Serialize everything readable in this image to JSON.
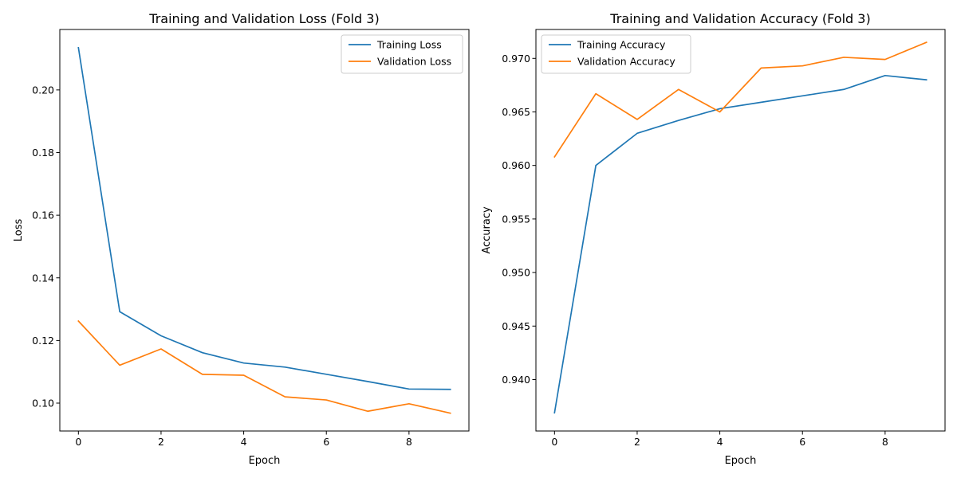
{
  "chart_data": [
    {
      "type": "line",
      "title": "Training and Validation Loss (Fold 3)",
      "xlabel": "Epoch",
      "ylabel": "Loss",
      "xlim": [
        -0.45,
        9.45
      ],
      "ylim": [
        0.0911,
        0.2193
      ],
      "xticks": [
        0,
        2,
        4,
        6,
        8
      ],
      "yticks": [
        0.1,
        0.12,
        0.14,
        0.16,
        0.18,
        0.2
      ],
      "xtick_labels": [
        "0",
        "2",
        "4",
        "6",
        "8"
      ],
      "ytick_labels": [
        "0.10",
        "0.12",
        "0.14",
        "0.16",
        "0.18",
        "0.20"
      ],
      "grid": false,
      "legend_position": "upper right",
      "x": [
        0,
        1,
        2,
        3,
        4,
        5,
        6,
        7,
        8,
        9
      ],
      "series": [
        {
          "name": "Training Loss",
          "color": "#1f77b4",
          "values": [
            0.2135,
            0.1292,
            0.1215,
            0.1161,
            0.1128,
            0.1115,
            0.1092,
            0.1069,
            0.1045,
            0.1044
          ]
        },
        {
          "name": "Validation Loss",
          "color": "#ff7f0e",
          "values": [
            0.1262,
            0.1121,
            0.1173,
            0.1092,
            0.1089,
            0.102,
            0.101,
            0.0974,
            0.0998,
            0.0968
          ]
        }
      ]
    },
    {
      "type": "line",
      "title": "Training and Validation Accuracy (Fold 3)",
      "xlabel": "Epoch",
      "ylabel": "Accuracy",
      "xlim": [
        -0.45,
        9.45
      ],
      "ylim": [
        0.9352,
        0.9727
      ],
      "xticks": [
        0,
        2,
        4,
        6,
        8
      ],
      "yticks": [
        0.94,
        0.945,
        0.95,
        0.955,
        0.96,
        0.965,
        0.97
      ],
      "xtick_labels": [
        "0",
        "2",
        "4",
        "6",
        "8"
      ],
      "ytick_labels": [
        "0.940",
        "0.945",
        "0.950",
        "0.955",
        "0.960",
        "0.965",
        "0.970"
      ],
      "grid": false,
      "legend_position": "upper left",
      "x": [
        0,
        1,
        2,
        3,
        4,
        5,
        6,
        7,
        8,
        9
      ],
      "series": [
        {
          "name": "Training Accuracy",
          "color": "#1f77b4",
          "values": [
            0.9369,
            0.96,
            0.963,
            0.9642,
            0.9653,
            0.9659,
            0.9665,
            0.9671,
            0.9684,
            0.968
          ]
        },
        {
          "name": "Validation Accuracy",
          "color": "#ff7f0e",
          "values": [
            0.9608,
            0.9667,
            0.9643,
            0.9671,
            0.965,
            0.9691,
            0.9693,
            0.9701,
            0.9699,
            0.9715
          ]
        }
      ]
    }
  ]
}
